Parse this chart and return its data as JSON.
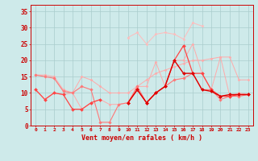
{
  "x": [
    0,
    1,
    2,
    3,
    4,
    5,
    6,
    7,
    8,
    9,
    10,
    11,
    12,
    13,
    14,
    15,
    16,
    17,
    18,
    19,
    20,
    21,
    22,
    23
  ],
  "background_color": "#ceeaea",
  "grid_color": "#aacccc",
  "xlabel": "Vent moyen/en rafales ( km/h )",
  "xlabel_color": "#cc0000",
  "series": [
    {
      "color": "#ffaaaa",
      "linewidth": 0.7,
      "markersize": 1.5,
      "values": [
        15.5,
        15.5,
        15.0,
        11.0,
        10.0,
        15.0,
        14.0,
        12.0,
        10.0,
        10.0,
        10.0,
        12.0,
        14.0,
        16.0,
        17.0,
        18.0,
        19.0,
        20.0,
        20.0,
        20.5,
        21.0,
        21.0,
        14.0,
        14.0
      ]
    },
    {
      "color": "#ffaaaa",
      "linewidth": 0.7,
      "markersize": 1.5,
      "values": [
        11.0,
        8.0,
        10.0,
        9.5,
        10.0,
        5.0,
        7.0,
        8.0,
        6.5,
        6.5,
        7.0,
        12.0,
        12.0,
        19.5,
        12.0,
        20.0,
        20.0,
        25.0,
        16.0,
        11.0,
        21.0,
        9.0,
        10.0,
        9.5
      ]
    },
    {
      "color": "#ff7777",
      "linewidth": 0.8,
      "markersize": 1.8,
      "values": [
        15.5,
        15.0,
        14.5,
        10.5,
        10.0,
        12.0,
        11.0,
        1.0,
        1.0,
        6.5,
        7.0,
        12.0,
        7.0,
        10.0,
        12.0,
        14.0,
        14.5,
        16.0,
        11.0,
        11.0,
        8.0,
        9.0,
        9.0,
        9.5
      ]
    },
    {
      "color": "#ff4444",
      "linewidth": 0.9,
      "markersize": 2.0,
      "values": [
        11.0,
        8.0,
        10.0,
        9.5,
        5.0,
        5.0,
        7.0,
        8.0,
        null,
        null,
        7.0,
        11.0,
        7.0,
        10.0,
        12.0,
        20.0,
        24.5,
        16.0,
        16.0,
        11.0,
        9.0,
        9.0,
        9.5,
        9.5
      ]
    },
    {
      "color": "#dd0000",
      "linewidth": 1.0,
      "markersize": 2.0,
      "values": [
        null,
        null,
        null,
        null,
        null,
        null,
        null,
        null,
        null,
        null,
        7.0,
        11.0,
        7.0,
        10.0,
        12.0,
        20.0,
        16.0,
        16.0,
        11.0,
        10.5,
        9.0,
        9.5,
        9.5,
        9.5
      ]
    },
    {
      "color": "#ffbbbb",
      "linewidth": 0.7,
      "markersize": 1.5,
      "values": [
        null,
        null,
        null,
        null,
        null,
        null,
        null,
        null,
        null,
        null,
        27.0,
        28.5,
        25.0,
        28.0,
        28.5,
        28.0,
        26.5,
        31.5,
        30.5,
        null,
        null,
        null,
        null,
        null
      ]
    }
  ],
  "yticks": [
    0,
    5,
    10,
    15,
    20,
    25,
    30,
    35
  ],
  "ylim": [
    0,
    37
  ],
  "xlim": [
    -0.5,
    23.5
  ],
  "xtick_labels": [
    "0",
    "1",
    "2",
    "3",
    "4",
    "5",
    "6",
    "7",
    "8",
    "9",
    "10",
    "11",
    "12",
    "13",
    "14",
    "15",
    "16",
    "17",
    "18",
    "19",
    "20",
    "21",
    "22",
    "23"
  ]
}
